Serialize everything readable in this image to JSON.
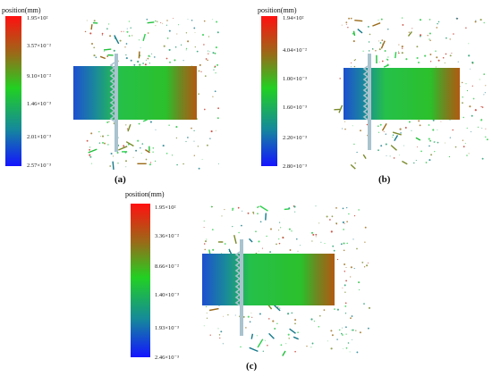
{
  "panels": [
    {
      "id": "a",
      "label": "(a)",
      "legend_title": "position(mm)",
      "ticks": [
        "1.95×10²",
        "3.57×10⁻²",
        "9.10×10⁻²",
        "1.46×10⁻³",
        "2.01×10⁻³",
        "2.57×10⁻³"
      ]
    },
    {
      "id": "b",
      "label": "(b)",
      "legend_title": "position(mm)",
      "ticks": [
        "1.94×10²",
        "4.04×10⁻²",
        "1.00×10⁻³",
        "1.60×10⁻³",
        "2.20×10⁻³",
        "2.80×10⁻³"
      ]
    },
    {
      "id": "c",
      "label": "(c)",
      "legend_title": "position(mm)",
      "ticks": [
        "1.95×10²",
        "3.36×10⁻²",
        "8.66×10⁻²",
        "1.40×10⁻³",
        "1.93×10⁻³",
        "2.46×10⁻³"
      ]
    }
  ],
  "colors": {
    "scale_top": "#ff1a1a",
    "scale_upper": "#8a7a1a",
    "scale_mid": "#22cc22",
    "scale_lower": "#1a8a8a",
    "scale_bottom": "#1a1aff",
    "tool": "#a9c3cf"
  }
}
